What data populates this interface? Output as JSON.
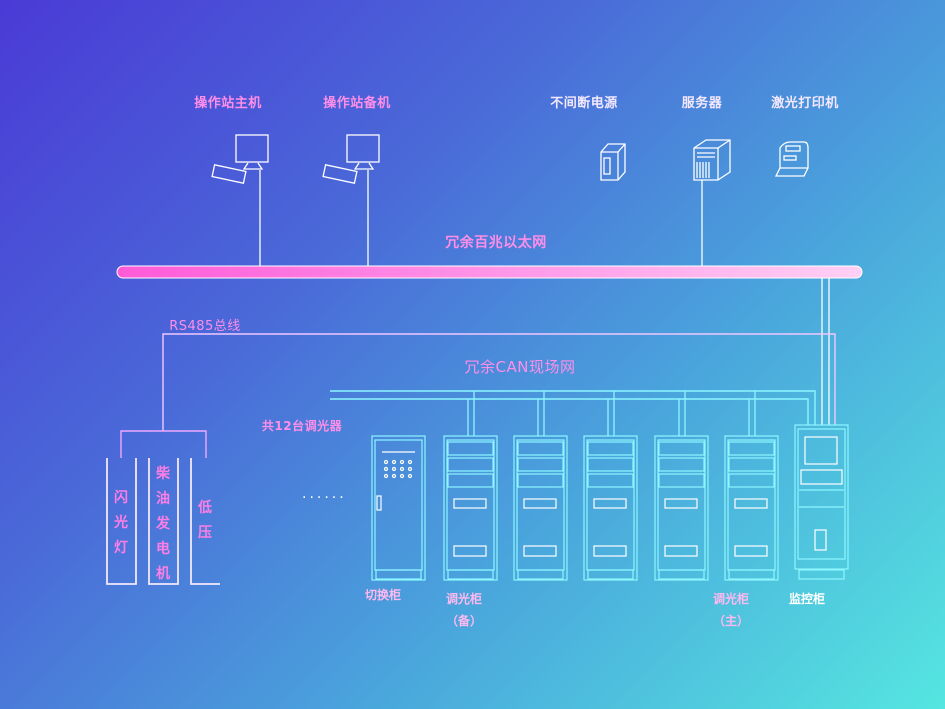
{
  "devices": {
    "host_station": "操作站主机",
    "backup_station": "操作站备机",
    "ups": "不间断电源",
    "server": "服务器",
    "laser_printer": "激光打印机"
  },
  "networks": {
    "ethernet": "冗余百兆以太网",
    "rs485": "RS485总线",
    "can": "冗余CAN现场网",
    "dimmer_count": "共12台调光器"
  },
  "external": {
    "strobe": "闪光灯",
    "diesel": "柴油发电机",
    "low_voltage": "低压"
  },
  "ellipsis": "......",
  "cabinets": {
    "switch": "切换柜",
    "dimmer_backup": "调光柜",
    "dimmer_backup_tag": "（备）",
    "dimmer_main": "调光柜",
    "dimmer_main_tag": "（主）",
    "monitor": "监控柜"
  },
  "colors": {
    "bus": "#ff6ee0",
    "line": "#e8f6ff",
    "can_line": "#7ff4ff",
    "label": "#ff8ee8"
  }
}
